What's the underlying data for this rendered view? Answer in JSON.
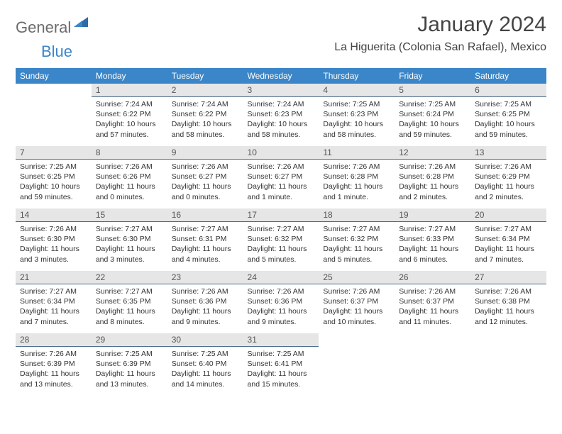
{
  "brand": {
    "part1": "General",
    "part2": "Blue"
  },
  "title": "January 2024",
  "location": "La Higuerita (Colonia San Rafael), Mexico",
  "colors": {
    "header_bg": "#3a86c8",
    "header_text": "#ffffff",
    "daybar_bg": "#e6e6e6",
    "daybar_rule": "#4a6a8a",
    "text": "#333333",
    "logo_gray": "#6b6b6b",
    "logo_blue": "#3a86c8",
    "page_bg": "#ffffff"
  },
  "typography": {
    "title_fontsize": 30,
    "location_fontsize": 16,
    "header_fontsize": 12,
    "daynum_fontsize": 12,
    "info_fontsize": 10.5
  },
  "weekdays": [
    "Sunday",
    "Monday",
    "Tuesday",
    "Wednesday",
    "Thursday",
    "Friday",
    "Saturday"
  ],
  "weeks": [
    [
      {
        "n": "",
        "sr": "",
        "ss": "",
        "dl": ""
      },
      {
        "n": "1",
        "sr": "7:24 AM",
        "ss": "6:22 PM",
        "dl": "10 hours and 57 minutes."
      },
      {
        "n": "2",
        "sr": "7:24 AM",
        "ss": "6:22 PM",
        "dl": "10 hours and 58 minutes."
      },
      {
        "n": "3",
        "sr": "7:24 AM",
        "ss": "6:23 PM",
        "dl": "10 hours and 58 minutes."
      },
      {
        "n": "4",
        "sr": "7:25 AM",
        "ss": "6:23 PM",
        "dl": "10 hours and 58 minutes."
      },
      {
        "n": "5",
        "sr": "7:25 AM",
        "ss": "6:24 PM",
        "dl": "10 hours and 59 minutes."
      },
      {
        "n": "6",
        "sr": "7:25 AM",
        "ss": "6:25 PM",
        "dl": "10 hours and 59 minutes."
      }
    ],
    [
      {
        "n": "7",
        "sr": "7:25 AM",
        "ss": "6:25 PM",
        "dl": "10 hours and 59 minutes."
      },
      {
        "n": "8",
        "sr": "7:26 AM",
        "ss": "6:26 PM",
        "dl": "11 hours and 0 minutes."
      },
      {
        "n": "9",
        "sr": "7:26 AM",
        "ss": "6:27 PM",
        "dl": "11 hours and 0 minutes."
      },
      {
        "n": "10",
        "sr": "7:26 AM",
        "ss": "6:27 PM",
        "dl": "11 hours and 1 minute."
      },
      {
        "n": "11",
        "sr": "7:26 AM",
        "ss": "6:28 PM",
        "dl": "11 hours and 1 minute."
      },
      {
        "n": "12",
        "sr": "7:26 AM",
        "ss": "6:28 PM",
        "dl": "11 hours and 2 minutes."
      },
      {
        "n": "13",
        "sr": "7:26 AM",
        "ss": "6:29 PM",
        "dl": "11 hours and 2 minutes."
      }
    ],
    [
      {
        "n": "14",
        "sr": "7:26 AM",
        "ss": "6:30 PM",
        "dl": "11 hours and 3 minutes."
      },
      {
        "n": "15",
        "sr": "7:27 AM",
        "ss": "6:30 PM",
        "dl": "11 hours and 3 minutes."
      },
      {
        "n": "16",
        "sr": "7:27 AM",
        "ss": "6:31 PM",
        "dl": "11 hours and 4 minutes."
      },
      {
        "n": "17",
        "sr": "7:27 AM",
        "ss": "6:32 PM",
        "dl": "11 hours and 5 minutes."
      },
      {
        "n": "18",
        "sr": "7:27 AM",
        "ss": "6:32 PM",
        "dl": "11 hours and 5 minutes."
      },
      {
        "n": "19",
        "sr": "7:27 AM",
        "ss": "6:33 PM",
        "dl": "11 hours and 6 minutes."
      },
      {
        "n": "20",
        "sr": "7:27 AM",
        "ss": "6:34 PM",
        "dl": "11 hours and 7 minutes."
      }
    ],
    [
      {
        "n": "21",
        "sr": "7:27 AM",
        "ss": "6:34 PM",
        "dl": "11 hours and 7 minutes."
      },
      {
        "n": "22",
        "sr": "7:27 AM",
        "ss": "6:35 PM",
        "dl": "11 hours and 8 minutes."
      },
      {
        "n": "23",
        "sr": "7:26 AM",
        "ss": "6:36 PM",
        "dl": "11 hours and 9 minutes."
      },
      {
        "n": "24",
        "sr": "7:26 AM",
        "ss": "6:36 PM",
        "dl": "11 hours and 9 minutes."
      },
      {
        "n": "25",
        "sr": "7:26 AM",
        "ss": "6:37 PM",
        "dl": "11 hours and 10 minutes."
      },
      {
        "n": "26",
        "sr": "7:26 AM",
        "ss": "6:37 PM",
        "dl": "11 hours and 11 minutes."
      },
      {
        "n": "27",
        "sr": "7:26 AM",
        "ss": "6:38 PM",
        "dl": "11 hours and 12 minutes."
      }
    ],
    [
      {
        "n": "28",
        "sr": "7:26 AM",
        "ss": "6:39 PM",
        "dl": "11 hours and 13 minutes."
      },
      {
        "n": "29",
        "sr": "7:25 AM",
        "ss": "6:39 PM",
        "dl": "11 hours and 13 minutes."
      },
      {
        "n": "30",
        "sr": "7:25 AM",
        "ss": "6:40 PM",
        "dl": "11 hours and 14 minutes."
      },
      {
        "n": "31",
        "sr": "7:25 AM",
        "ss": "6:41 PM",
        "dl": "11 hours and 15 minutes."
      },
      {
        "n": "",
        "sr": "",
        "ss": "",
        "dl": ""
      },
      {
        "n": "",
        "sr": "",
        "ss": "",
        "dl": ""
      },
      {
        "n": "",
        "sr": "",
        "ss": "",
        "dl": ""
      }
    ]
  ],
  "labels": {
    "sunrise": "Sunrise: ",
    "sunset": "Sunset: ",
    "daylight": "Daylight: "
  }
}
